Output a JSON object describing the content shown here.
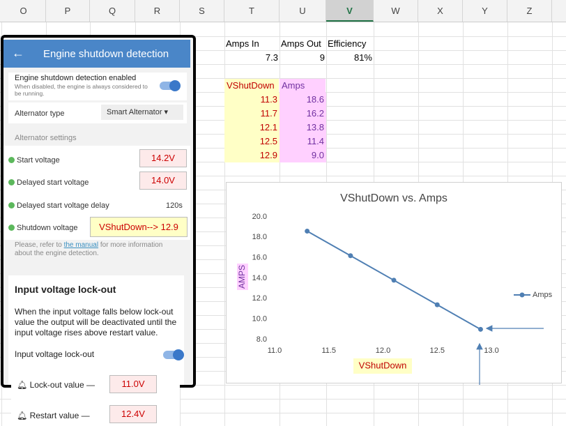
{
  "sheet": {
    "columns": [
      "O",
      "P",
      "Q",
      "R",
      "S",
      "T",
      "U",
      "V",
      "W",
      "X",
      "Y",
      "Z"
    ],
    "table1": {
      "header": [
        "Amps In",
        "Amps Out",
        "Efficiency"
      ],
      "row": [
        "7.3",
        "9",
        "81%"
      ]
    },
    "table2": {
      "header": [
        "VShutDown",
        "Amps"
      ],
      "rows": [
        [
          "11.3",
          "18.6"
        ],
        [
          "11.7",
          "16.2"
        ],
        [
          "12.1",
          "13.8"
        ],
        [
          "12.5",
          "11.4"
        ],
        [
          "12.9",
          "9.0"
        ]
      ]
    }
  },
  "phone": {
    "title": "Engine shutdown detection",
    "enabled_label": "Engine shutdown detection enabled",
    "enabled_hint": "When disabled, the engine is always considered to be running.",
    "alternator_label": "Alternator type",
    "alternator_value": "Smart Alternator",
    "section": "Alternator settings",
    "rows": [
      {
        "label": "Start voltage",
        "value": "14.2V"
      },
      {
        "label": "Delayed start voltage",
        "value": "14.0V"
      },
      {
        "label": "Delayed start voltage delay",
        "value": "120s"
      },
      {
        "label": "Shutdown voltage",
        "value": "VShutDown--> 12.9"
      }
    ],
    "note_before": "Please, refer to",
    "note_link": "the manual",
    "note_after": "for more information about the engine detection.",
    "lockout_title": "Input voltage lock-out",
    "lockout_text": "When the input voltage falls below lock-out value the output will be deactivated until the input voltage rises above restart value.",
    "lockout_toggle": "Input voltage lock-out",
    "lockout_value_label": "Lock-out value",
    "lockout_value": "11.0V",
    "restart_label": "Restart value",
    "restart_value": "12.4V"
  },
  "chart_data": {
    "type": "line",
    "title": "VShutDown vs. Amps",
    "x_label": "VShutDown",
    "y_label": "AMPS",
    "x": [
      11.3,
      11.7,
      12.1,
      12.5,
      12.9
    ],
    "series": [
      {
        "name": "Amps",
        "color": "#4f7fb3",
        "values": [
          18.6,
          16.2,
          13.8,
          11.4,
          9.0
        ]
      }
    ],
    "xlim": [
      11.0,
      13.0
    ],
    "xticks": [
      {
        "value": 11,
        "label": "11.0"
      },
      11.5,
      {
        "value": 12,
        "label": "12.0"
      },
      12.5,
      {
        "value": 13,
        "label": "13.0"
      }
    ],
    "ylim": [
      8.0,
      20.0
    ],
    "yticks": [
      {
        "value": 8,
        "label": "8.0"
      },
      {
        "value": 10,
        "label": "10.0"
      },
      {
        "value": 12,
        "label": "12.0"
      },
      {
        "value": 14,
        "label": "14.0"
      },
      {
        "value": 16,
        "label": "16.0"
      },
      {
        "value": 18,
        "label": "18.0"
      },
      {
        "value": 20,
        "label": "20.0"
      }
    ],
    "legend": "right",
    "grid": false
  }
}
